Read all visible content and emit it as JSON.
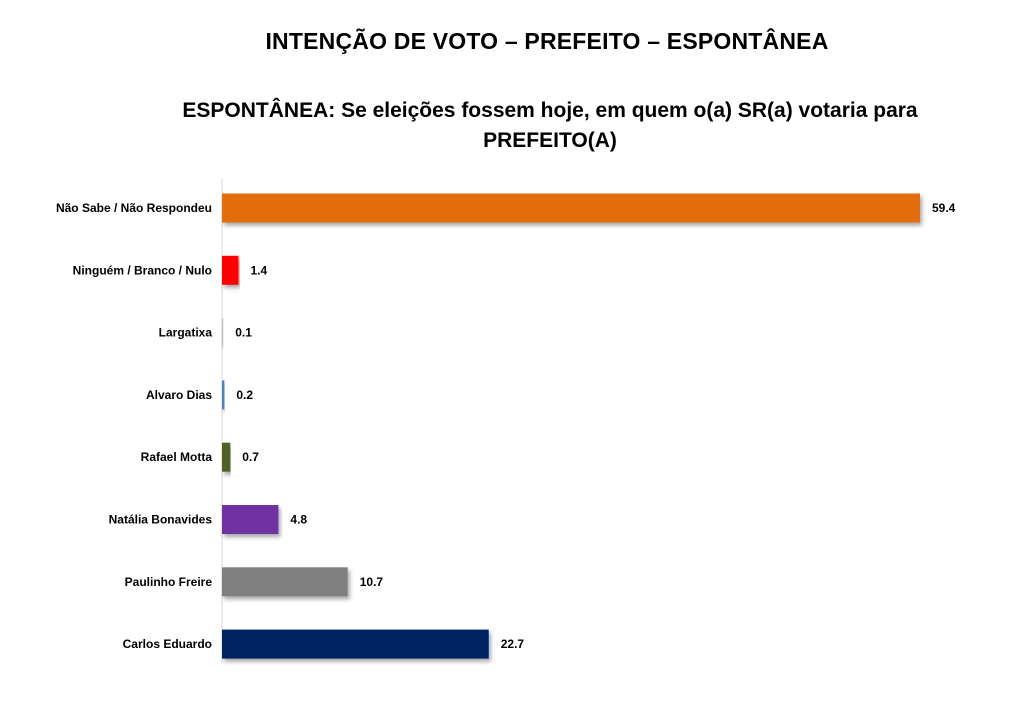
{
  "header": {
    "title": "INTENÇÃO DE VOTO – PREFEITO – ESPONTÂNEA",
    "subtitle": "ESPONTÂNEA: Se eleições fossem hoje, em quem o(a) SR(a) votaria para PREFEITO(A)"
  },
  "chart_data": {
    "type": "bar",
    "orientation": "horizontal",
    "categories": [
      "Não Sabe / Não Respondeu",
      "Ninguém / Branco / Nulo",
      "Largatixa",
      "Alvaro Dias",
      "Rafael Motta",
      "Natália Bonavides",
      "Paulinho Freire",
      "Carlos Eduardo"
    ],
    "values": [
      59.4,
      1.4,
      0.1,
      0.2,
      0.7,
      4.8,
      10.7,
      22.7
    ],
    "value_labels": [
      "59.4",
      "1.4",
      "0.1",
      "0.2",
      "0.7",
      "4.8",
      "10.7",
      "22.7"
    ],
    "colors": [
      "#E36C0A",
      "#FF0000",
      "#C0C0C0",
      "#4F81BD",
      "#4F6228",
      "#7030A0",
      "#808080",
      "#002060"
    ],
    "xlim": [
      0,
      59.4
    ],
    "grid": false,
    "legend": "none"
  }
}
